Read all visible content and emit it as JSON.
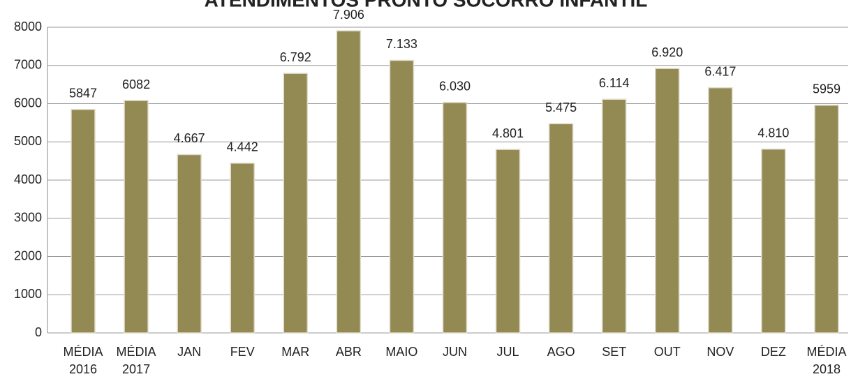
{
  "chart_data": {
    "type": "bar",
    "title": "ATENDIMENTOS PRONTO SOCORRO INFANTIL",
    "categories": [
      "MÉDIA 2016",
      "MÉDIA 2017",
      "JAN",
      "FEV",
      "MAR",
      "ABR",
      "MAIO",
      "JUN",
      "JUL",
      "AGO",
      "SET",
      "OUT",
      "NOV",
      "DEZ",
      "MÉDIA 2018"
    ],
    "values": [
      5847,
      6082,
      4667,
      4442,
      6792,
      7906,
      7133,
      6030,
      4801,
      5475,
      6114,
      6920,
      6417,
      4810,
      5959
    ],
    "value_labels": [
      "5847",
      "6082",
      "4.667",
      "4.442",
      "6.792",
      "7.906",
      "7.133",
      "6.030",
      "4.801",
      "5.475",
      "6.114",
      "6.920",
      "6.417",
      "4.810",
      "5959"
    ],
    "color": "#938953",
    "ylim": [
      0,
      8000
    ],
    "yticks": [
      0,
      1000,
      2000,
      3000,
      4000,
      5000,
      6000,
      7000,
      8000
    ],
    "grid": true
  }
}
